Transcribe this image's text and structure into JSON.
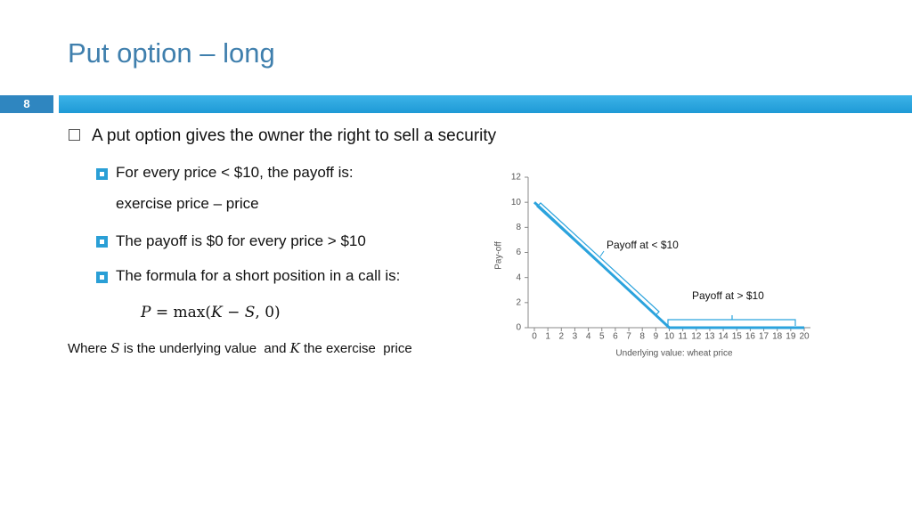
{
  "title": "Put option – long",
  "slide_number": "8",
  "bullet": "A put option gives the owner the right to sell a security",
  "sub_bullets": [
    {
      "text": "For every price < $10, the payoff is:",
      "continuation": "exercise price – price"
    },
    {
      "text": "The payoff is $0 for every price > $10"
    },
    {
      "text": "The formula for a short position in a call is:"
    }
  ],
  "formula": [
    "P",
    " = max(",
    "K",
    " − ",
    "S",
    ", 0)"
  ],
  "note": [
    "Where ",
    "S",
    " is the underlying value  and ",
    "K",
    " the exercise  price"
  ],
  "chart_data": {
    "type": "line",
    "x": [
      0,
      1,
      2,
      3,
      4,
      5,
      6,
      7,
      8,
      9,
      10,
      11,
      12,
      13,
      14,
      15,
      16,
      17,
      18,
      19,
      20
    ],
    "values": [
      10,
      9,
      8,
      7,
      6,
      5,
      4,
      3,
      2,
      1,
      0,
      0,
      0,
      0,
      0,
      0,
      0,
      0,
      0,
      0,
      0
    ],
    "color": "#2ba3dd",
    "xlabel": "Underlying value: wheat price",
    "ylabel": "Pay-off",
    "xlim": [
      0,
      20
    ],
    "xticks": [
      0,
      1,
      2,
      3,
      4,
      5,
      6,
      7,
      8,
      9,
      10,
      11,
      12,
      13,
      14,
      15,
      16,
      17,
      18,
      19,
      20
    ],
    "ylim": [
      0,
      12
    ],
    "yticks": [
      0,
      2,
      4,
      6,
      8,
      10,
      12
    ],
    "annotations": [
      "Payoff at < $10",
      "Payoff at > $10"
    ]
  }
}
